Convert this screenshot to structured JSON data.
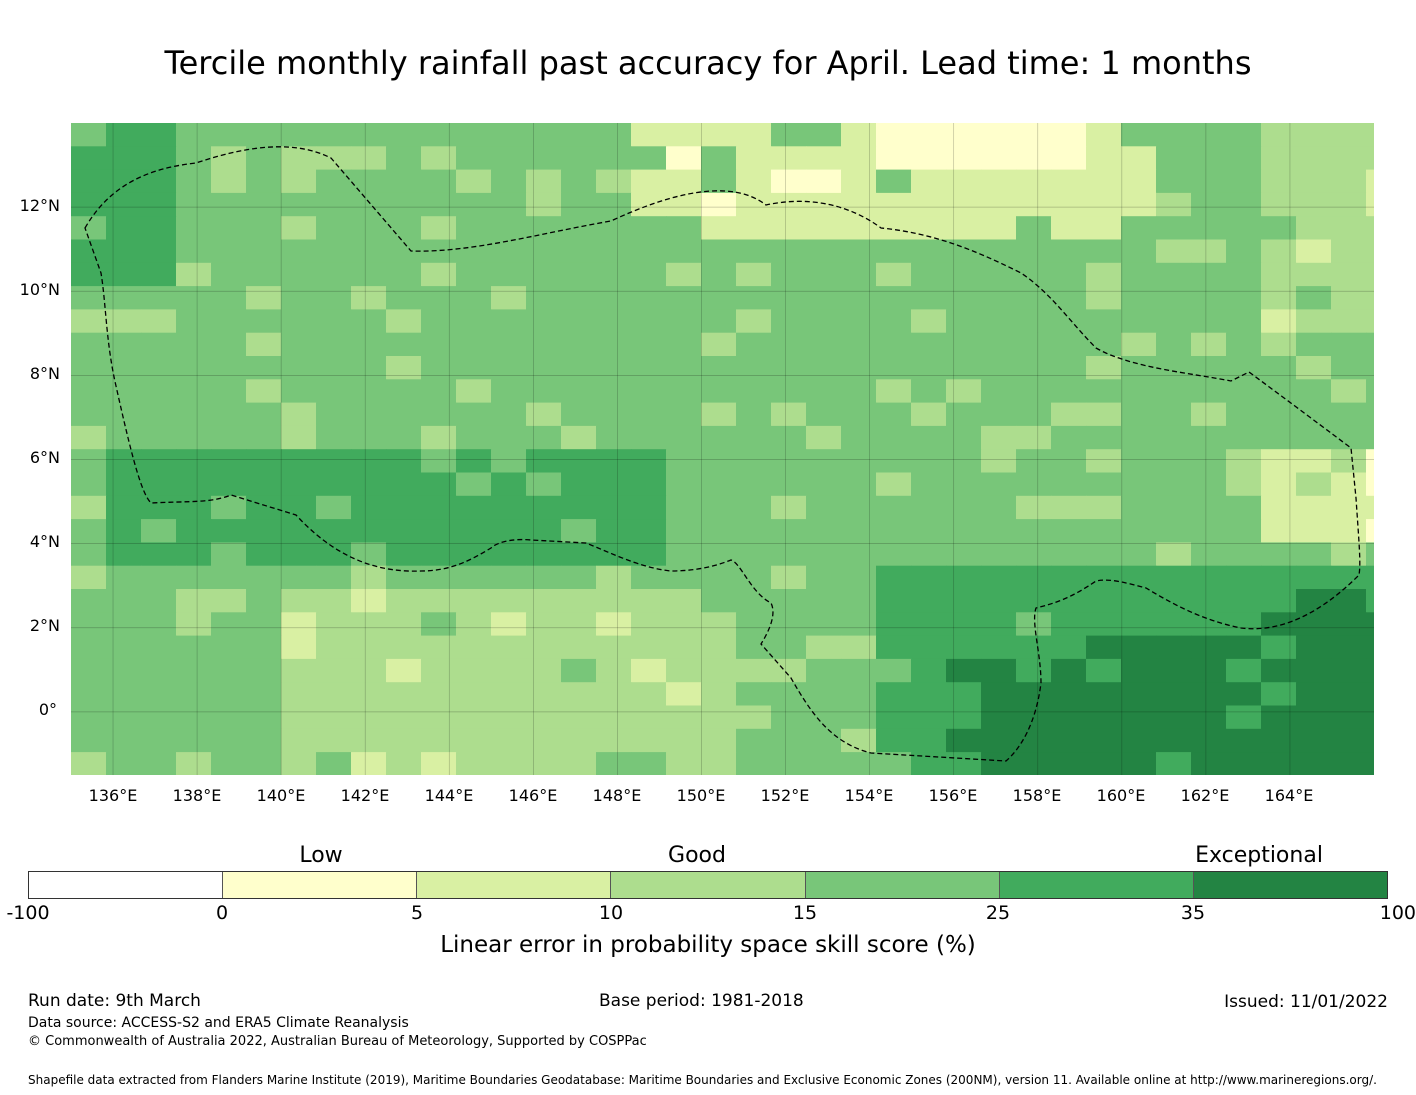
{
  "title": "Tercile monthly rainfall past accuracy for April. Lead time: 1 months",
  "map": {
    "lat_range": [
      -1.5,
      14.0
    ],
    "lon_range": [
      135.0,
      166.0
    ],
    "lat_ticks": [
      "12°N",
      "10°N",
      "8°N",
      "6°N",
      "4°N",
      "2°N",
      "0°"
    ],
    "lon_ticks": [
      "136°E",
      "138°E",
      "140°E",
      "142°E",
      "144°E",
      "146°E",
      "148°E",
      "150°E",
      "152°E",
      "154°E",
      "156°E",
      "158°E",
      "160°E",
      "162°E",
      "164°E"
    ],
    "boundary": "Federated States of Micronesia EEZ",
    "lowest_skill_region": "north of 12°N between 154°E and 160°E",
    "highest_skill_region": "south-east, south of 2°N and east of 156°E"
  },
  "legend": {
    "categories": [
      "Low",
      "Good",
      "Exceptional"
    ],
    "ticks": [
      "-100",
      "0",
      "5",
      "10",
      "15",
      "25",
      "35",
      "100"
    ],
    "colors": [
      "#ffffff",
      "#ffffcc",
      "#d9f0a3",
      "#addd8e",
      "#78c679",
      "#41ab5d",
      "#238443"
    ],
    "label": "Linear error in probability space skill score (%)"
  },
  "footer": {
    "run_date": "Run date: 9th March",
    "base_period": "Base period: 1981-2018",
    "issued": "Issued: 11/01/2022",
    "data_source": "Data source: ACCESS-S2 and ERA5 Climate Reanalysis",
    "copyright": "© Commonwealth of Australia 2022, Australian Bureau of Meteorology, Supported by COSPPac",
    "shapefile": "Shapefile data extracted from Flanders Marine Institute (2019), Maritime Boundaries Geodatabase: Maritime Boundaries and Exclusive Economic Zones (200NM), version 11. Available online at http://www.marineregions.org/."
  }
}
